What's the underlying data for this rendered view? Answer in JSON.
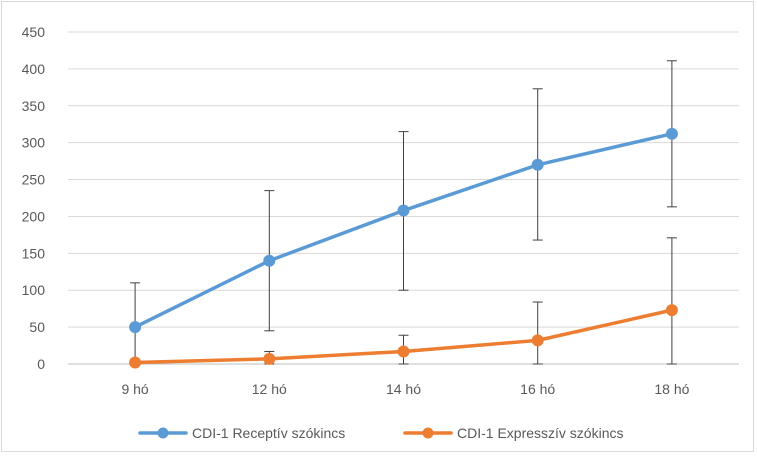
{
  "chart_data": {
    "type": "line",
    "title": "",
    "xlabel": "",
    "ylabel": "",
    "categories": [
      "9 hó",
      "12 hó",
      "14 hó",
      "16 hó",
      "18 hó"
    ],
    "ylim": [
      0,
      450
    ],
    "yticks": [
      0,
      50,
      100,
      150,
      200,
      250,
      300,
      350,
      400,
      450
    ],
    "grid": true,
    "legend_position": "bottom",
    "series": [
      {
        "name": "CDI-1 Receptív szókincs",
        "color": "#5b9bd5",
        "values": [
          50,
          140,
          208,
          270,
          312
        ],
        "error_upper": [
          110,
          235,
          315,
          373,
          411
        ],
        "error_lower": [
          0,
          45,
          100,
          168,
          213
        ]
      },
      {
        "name": "CDI-1 Expresszív szókincs",
        "color": "#ed7d31",
        "values": [
          2,
          7,
          17,
          32,
          73
        ],
        "error_upper": [
          2,
          17,
          39,
          84,
          171
        ],
        "error_lower": [
          2,
          0,
          0,
          0,
          0
        ]
      }
    ]
  }
}
